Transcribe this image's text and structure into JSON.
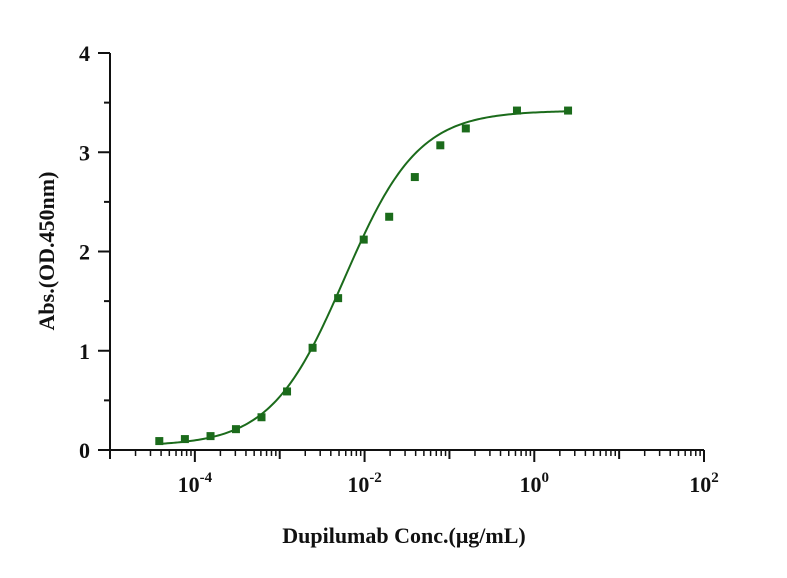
{
  "chart_data": {
    "type": "scatter",
    "xlabel": "Dupilumab Conc.(μg/mL)",
    "ylabel": "Abs.(OD.450nm)",
    "x_scale": "log10",
    "xlim_exponent": [
      -5,
      2
    ],
    "ylim": [
      0,
      4
    ],
    "grid": false,
    "marker_color": "#1b6b1b",
    "curve_color": "#1b6b1b",
    "x_ticks": [
      {
        "base": "10",
        "exp": "-4",
        "value": 0.0001
      },
      {
        "base": "10",
        "exp": "-2",
        "value": 0.01
      },
      {
        "base": "10",
        "exp": "0",
        "value": 1
      },
      {
        "base": "10",
        "exp": "2",
        "value": 100
      }
    ],
    "y_ticks": [
      {
        "label": "0",
        "value": 0
      },
      {
        "label": "1",
        "value": 1
      },
      {
        "label": "2",
        "value": 2
      },
      {
        "label": "3",
        "value": 3
      },
      {
        "label": "4",
        "value": 4
      }
    ],
    "series": [
      {
        "x": [
          3.81e-05,
          7.63e-05,
          0.000153,
          0.000305,
          0.00061,
          0.00122,
          0.00244,
          0.00488,
          0.00977,
          0.0195,
          0.0391,
          0.0781,
          0.156,
          0.625,
          2.5
        ],
        "y": [
          0.09,
          0.11,
          0.14,
          0.21,
          0.33,
          0.59,
          1.03,
          1.53,
          2.12,
          2.35,
          2.75,
          3.07,
          3.24,
          3.42,
          3.42
        ]
      }
    ],
    "fit_curve": {
      "type": "4PL",
      "bottom": 0.04,
      "top": 3.42,
      "ec50": 0.0058,
      "hill": 1.0,
      "x_range": [
        3.81e-05,
        2.5
      ]
    }
  }
}
